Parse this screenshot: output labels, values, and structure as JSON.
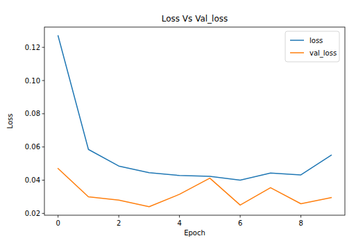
{
  "chart_data": {
    "type": "line",
    "title": "Loss Vs Val_loss",
    "x_label": "Epoch",
    "y_label": "Loss",
    "x": [
      0,
      1,
      2,
      3,
      4,
      5,
      6,
      7,
      8,
      9
    ],
    "series": [
      {
        "name": "loss",
        "color": "#1f77b4",
        "values": [
          0.127,
          0.0585,
          0.0485,
          0.0445,
          0.0428,
          0.0423,
          0.04,
          0.0443,
          0.0432,
          0.055
        ]
      },
      {
        "name": "val_loss",
        "color": "#ff7f0e",
        "values": [
          0.047,
          0.03,
          0.028,
          0.024,
          0.0315,
          0.0412,
          0.025,
          0.0355,
          0.0258,
          0.0295
        ]
      }
    ],
    "xlim": [
      -0.45,
      9.45
    ],
    "xticks": [
      0,
      2,
      4,
      6,
      8
    ],
    "ylim": [
      0.0189,
      0.1322
    ],
    "yticks": [
      0.02,
      0.04,
      0.06,
      0.08,
      {
        "value": 0.1,
        "label": "0.10"
      },
      0.12
    ],
    "legend": "upper right",
    "grid": false
  }
}
